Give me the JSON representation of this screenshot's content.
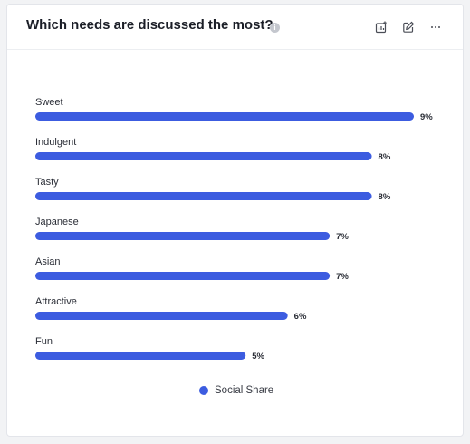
{
  "header": {
    "title": "Which needs are discussed the most?",
    "info_glyph": "i",
    "icons": [
      "add-chart-icon",
      "edit-icon",
      "more-icon"
    ]
  },
  "colors": {
    "bar": "#3c5ce0"
  },
  "chart_data": {
    "type": "bar",
    "orientation": "horizontal",
    "categories": [
      "Sweet",
      "Indulgent",
      "Tasty",
      "Japanese",
      "Asian",
      "Attractive",
      "Fun"
    ],
    "series": [
      {
        "name": "Social Share",
        "values": [
          9,
          8,
          8,
          7,
          7,
          6,
          5
        ],
        "value_labels": [
          "9%",
          "8%",
          "8%",
          "7%",
          "7%",
          "6%",
          "5%"
        ]
      }
    ],
    "xlim": [
      0,
      9
    ],
    "grid": false,
    "legend": "bottom-center"
  }
}
